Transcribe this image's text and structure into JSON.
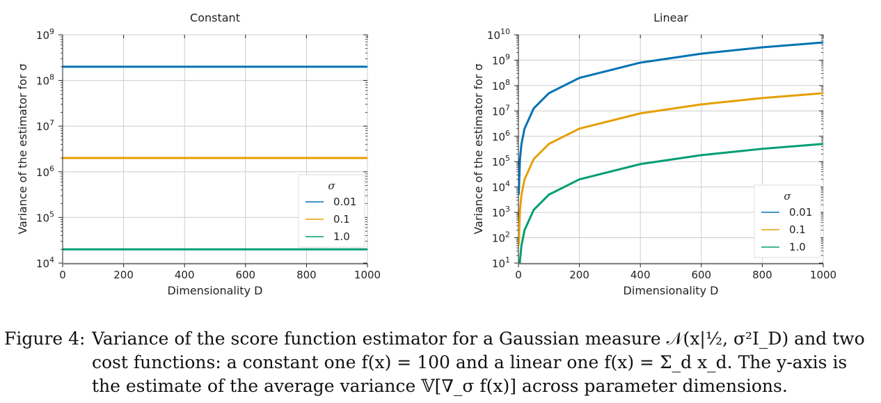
{
  "colors": {
    "blue": "#0072b2",
    "orange": "#e69f00",
    "green": "#009e73",
    "grid": "#cccccc",
    "axis": "#222222"
  },
  "chart_data": [
    {
      "type": "line",
      "title": "Constant",
      "xlabel": "Dimensionality D",
      "ylabel": "Variance of the estimator for σ",
      "xlim": [
        0,
        1000
      ],
      "ylim_log10": [
        4,
        9
      ],
      "yscale": "log",
      "xticks": [
        0,
        200,
        400,
        600,
        800,
        1000
      ],
      "yticks": [
        {
          "base": "10",
          "exp": "4"
        },
        {
          "base": "10",
          "exp": "5"
        },
        {
          "base": "10",
          "exp": "6"
        },
        {
          "base": "10",
          "exp": "7"
        },
        {
          "base": "10",
          "exp": "8"
        },
        {
          "base": "10",
          "exp": "9"
        }
      ],
      "grid": true,
      "legend": {
        "title": "σ",
        "position": "lower-right"
      },
      "series": [
        {
          "name": "0.01",
          "color": "#0072b2",
          "x": [
            1,
            100,
            200,
            300,
            400,
            500,
            600,
            700,
            800,
            900,
            1000
          ],
          "y": [
            200000000.0,
            200000000.0,
            200000000.0,
            200000000.0,
            200000000.0,
            200000000.0,
            200000000.0,
            200000000.0,
            200000000.0,
            200000000.0,
            200000000.0
          ]
        },
        {
          "name": "0.1",
          "color": "#e69f00",
          "x": [
            1,
            100,
            200,
            300,
            400,
            500,
            600,
            700,
            800,
            900,
            1000
          ],
          "y": [
            2000000.0,
            2000000.0,
            2000000.0,
            2000000.0,
            2000000.0,
            2000000.0,
            2000000.0,
            2000000.0,
            2000000.0,
            2000000.0,
            2000000.0
          ]
        },
        {
          "name": "1.0",
          "color": "#009e73",
          "x": [
            1,
            100,
            200,
            300,
            400,
            500,
            600,
            700,
            800,
            900,
            1000
          ],
          "y": [
            20000.0,
            20000.0,
            20000.0,
            20000.0,
            20000.0,
            20000.0,
            20000.0,
            20000.0,
            20000.0,
            20000.0,
            20000.0
          ]
        }
      ]
    },
    {
      "type": "line",
      "title": "Linear",
      "xlabel": "Dimensionality D",
      "ylabel": "Variance of the estimator for σ",
      "xlim": [
        0,
        1000
      ],
      "ylim_log10": [
        1,
        10
      ],
      "yscale": "log",
      "xticks": [
        0,
        200,
        400,
        600,
        800,
        1000
      ],
      "yticks": [
        {
          "base": "10",
          "exp": "1"
        },
        {
          "base": "10",
          "exp": "2"
        },
        {
          "base": "10",
          "exp": "3"
        },
        {
          "base": "10",
          "exp": "4"
        },
        {
          "base": "10",
          "exp": "5"
        },
        {
          "base": "10",
          "exp": "6"
        },
        {
          "base": "10",
          "exp": "7"
        },
        {
          "base": "10",
          "exp": "8"
        },
        {
          "base": "10",
          "exp": "9"
        },
        {
          "base": "10",
          "exp": "10"
        }
      ],
      "grid": true,
      "legend": {
        "title": "σ",
        "position": "lower-right"
      },
      "series": [
        {
          "name": "0.01",
          "color": "#0072b2",
          "x": [
            1,
            5,
            10,
            20,
            50,
            100,
            200,
            400,
            600,
            800,
            1000
          ],
          "y": [
            5000.0,
            125000.0,
            500000.0,
            2000000.0,
            12500000.0,
            50000000.0,
            200000000.0,
            800000000.0,
            1800000000.0,
            3200000000.0,
            5000000000.0
          ]
        },
        {
          "name": "0.1",
          "color": "#e69f00",
          "x": [
            1,
            5,
            10,
            20,
            50,
            100,
            200,
            400,
            600,
            800,
            1000
          ],
          "y": [
            50.0,
            1250.0,
            5000.0,
            20000.0,
            125000.0,
            500000.0,
            2000000.0,
            8000000.0,
            18000000.0,
            32000000.0,
            50000000.0
          ]
        },
        {
          "name": "1.0",
          "color": "#009e73",
          "x": [
            1,
            5,
            10,
            20,
            50,
            100,
            200,
            400,
            600,
            800,
            1000
          ],
          "y": [
            0.5,
            12.5,
            50.0,
            200.0,
            1250.0,
            5000.0,
            20000.0,
            80000.0,
            180000.0,
            320000.0,
            500000.0
          ]
        }
      ]
    }
  ],
  "caption": {
    "label": "Figure 4:",
    "line1": "Variance of the score function estimator for a Gaussian measure 𝒩(x|½, σ²I_D) and two",
    "line2": "cost functions: a constant one f(x) = 100 and a linear one f(x) = Σ_d x_d. The y-axis is",
    "line3": "the estimate of the average variance 𝕍[∇_σ f(x)] across parameter dimensions."
  }
}
